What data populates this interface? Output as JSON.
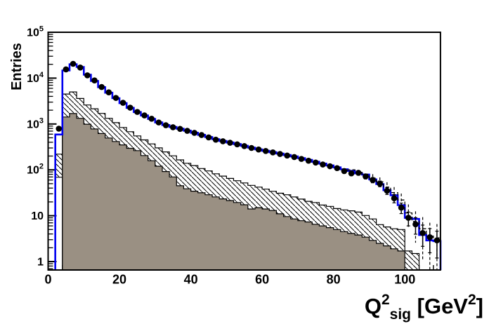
{
  "figure": {
    "background": "#ffffff",
    "frame_color": "#000000"
  },
  "chart_data": {
    "type": "bar",
    "subtype": "overlaid-log-histograms",
    "title": "",
    "ylabel": "Entries",
    "xlabel_parts": {
      "base": "Q",
      "sup": "2",
      "sub": "sig",
      "unit_pre": " [GeV",
      "unit_sup": "2",
      "unit_post": "]"
    },
    "y_scale": "log",
    "x_range": [
      0,
      110
    ],
    "y_range": [
      0.655,
      100000
    ],
    "grid": false,
    "legend": "none",
    "x_ticks": [
      0,
      20,
      40,
      60,
      80,
      100
    ],
    "x_tick_labels": [
      "0",
      "20",
      "40",
      "60",
      "80",
      "100"
    ],
    "x_minor_step": 4,
    "y_tick_labels": [
      {
        "value": 1,
        "base": "1",
        "exp": ""
      },
      {
        "value": 10,
        "base": "10",
        "exp": ""
      },
      {
        "value": 100,
        "base": "10",
        "exp": "2"
      },
      {
        "value": 1000,
        "base": "10",
        "exp": "3"
      },
      {
        "value": 10000,
        "base": "10",
        "exp": "4"
      },
      {
        "value": 100000,
        "base": "10",
        "exp": "5"
      }
    ],
    "bins": {
      "start": 0,
      "width": 2,
      "count": 55
    },
    "colors": {
      "mc_total_line": "#0000f0",
      "gray_fill": "#9a9083",
      "outline": "#000000",
      "marker": "#000000",
      "dashed_line": "#000000"
    },
    "series": [
      {
        "name": "data-points",
        "type": "scatter",
        "marker": "filled-circle",
        "centers": [
          3,
          5,
          7,
          9,
          11,
          13,
          15,
          17,
          19,
          21,
          23,
          25,
          27,
          29,
          31,
          33,
          35,
          37,
          39,
          41,
          43,
          45,
          47,
          49,
          51,
          53,
          55,
          57,
          59,
          61,
          63,
          65,
          67,
          69,
          71,
          73,
          75,
          77,
          79,
          81,
          83,
          85,
          87,
          89,
          91,
          93,
          95,
          97,
          99,
          101,
          103,
          105,
          107,
          109
        ],
        "values": [
          790,
          15500,
          20500,
          17000,
          11500,
          8900,
          6400,
          4900,
          3700,
          2900,
          2270,
          1830,
          1540,
          1300,
          1080,
          940,
          850,
          780,
          710,
          640,
          575,
          510,
          455,
          420,
          390,
          360,
          330,
          300,
          278,
          258,
          240,
          222,
          205,
          190,
          173,
          158,
          144,
          131,
          120,
          109,
          94,
          84,
          86,
          72,
          60,
          50,
          35,
          24,
          15,
          9,
          6.5,
          4.2,
          3.4,
          2.9
        ],
        "errors": "sqrt(N)"
      },
      {
        "name": "mc-total-histogram",
        "type": "step-line",
        "values": [
          0,
          590,
          14700,
          20000,
          17500,
          11900,
          8700,
          6350,
          4800,
          3650,
          2850,
          2250,
          1820,
          1530,
          1290,
          1080,
          950,
          860,
          790,
          715,
          645,
          580,
          520,
          465,
          425,
          395,
          365,
          335,
          305,
          280,
          260,
          242,
          226,
          210,
          196,
          180,
          165,
          150,
          137,
          125,
          113,
          103,
          95,
          84,
          79,
          62,
          49,
          36,
          28,
          17,
          9,
          8.5,
          3.8,
          2.9,
          2.8
        ]
      },
      {
        "name": "mc-dashed-histogram",
        "type": "step-line-dashed",
        "start_bin": 42,
        "values": [
          100,
          88,
          80,
          66,
          55,
          42,
          32,
          22,
          11.5,
          7.5,
          5.2,
          3.6,
          3.3
        ]
      },
      {
        "name": "hatched-background-histogram",
        "type": "filled-hatch",
        "values": [
          0,
          220,
          4500,
          5000,
          3600,
          2600,
          2150,
          1700,
          1330,
          1070,
          840,
          680,
          550,
          450,
          368,
          301,
          246,
          202,
          165,
          139,
          124,
          107,
          95,
          82,
          73,
          65,
          58,
          52,
          46,
          42,
          38,
          34,
          31,
          28.7,
          25.7,
          23,
          20.6,
          19.4,
          17.1,
          16,
          14.3,
          13.4,
          12.8,
          12,
          10.1,
          8.5,
          6.4,
          5.7,
          5.2,
          5.0,
          1.7,
          1.5,
          0,
          0,
          0
        ],
        "first_bin_band_bottom": 69
      },
      {
        "name": "gray-background-histogram",
        "type": "filled-solid",
        "values": [
          0,
          0,
          1420,
          1690,
          1330,
          990,
          780,
          620,
          495,
          415,
          350,
          295,
          262,
          205,
          158,
          120,
          92,
          70,
          45,
          38.7,
          34.3,
          31.6,
          28.7,
          25.7,
          23.3,
          21.4,
          19.4,
          17.3,
          14,
          15,
          14,
          13,
          11,
          9.6,
          8.5,
          7.8,
          7.3,
          6.5,
          6.0,
          5.5,
          5.0,
          4.5,
          4.1,
          3.8,
          3.4,
          2.9,
          2.5,
          2.2,
          1.9,
          1.7,
          0,
          0,
          0,
          0,
          0
        ]
      }
    ]
  }
}
